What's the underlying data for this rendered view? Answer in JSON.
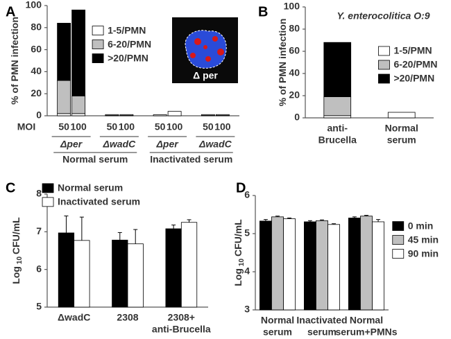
{
  "chart_data": [
    {
      "type": "bar",
      "stacked": true,
      "panel": "A",
      "ylabel": "% of PMN infection",
      "x_prefix": "MOI",
      "categories": [
        "50",
        "100",
        "50",
        "100",
        "50",
        "100",
        "50",
        "100"
      ],
      "groups": [
        "Δper",
        "ΔwadC",
        "Δper",
        "ΔwadC"
      ],
      "supergroups": [
        "Normal serum",
        "Inactivated serum"
      ],
      "inset_label": "Δ per",
      "series": [
        {
          "name": "1-5/PMN",
          "color": "#ffffff",
          "values": [
            2,
            2,
            0.3,
            0.3,
            1,
            4,
            0.3,
            0.3
          ]
        },
        {
          "name": "6-20/PMN",
          "color": "#bfbfbf",
          "values": [
            30,
            16,
            0.8,
            0.8,
            0,
            0,
            0.8,
            0.8
          ]
        },
        {
          "name": ">20/PMN",
          "color": "#000000",
          "values": [
            52,
            78,
            0,
            0,
            0,
            0,
            0,
            0
          ]
        }
      ],
      "ylim": [
        0,
        100
      ],
      "yticks": [
        0,
        20,
        40,
        60,
        80,
        100
      ],
      "grid": false,
      "legend": "center"
    },
    {
      "type": "bar",
      "stacked": true,
      "panel": "B",
      "title": "Y. enterocolitica O:9",
      "ylabel": "% of PMN infection",
      "categories": [
        [
          "anti-",
          "Brucella"
        ],
        [
          "Normal",
          "serum"
        ]
      ],
      "series": [
        {
          "name": "1-5/PMN",
          "color": "#ffffff",
          "values": [
            2,
            5
          ]
        },
        {
          "name": "6-20/PMN",
          "color": "#bfbfbf",
          "values": [
            17,
            0
          ]
        },
        {
          "name": ">20/PMN",
          "color": "#000000",
          "values": [
            49,
            0
          ]
        }
      ],
      "ylim": [
        0,
        100
      ],
      "yticks": [
        0,
        20,
        40,
        60,
        80,
        100
      ],
      "grid": false,
      "legend": "center right"
    },
    {
      "type": "bar",
      "stacked": false,
      "panel": "C",
      "ylabel": "Log",
      "ylabel_sub": "10",
      "ylabel_unit": "CFU/mL",
      "categories": [
        [
          "ΔwadC"
        ],
        [
          "2308"
        ],
        [
          "2308+",
          "anti-Brucella"
        ]
      ],
      "series": [
        {
          "name": "Normal serum",
          "color": "#000000",
          "values": [
            6.97,
            6.78,
            7.08
          ],
          "errors": [
            0.45,
            0.2,
            0.1
          ]
        },
        {
          "name": "Inactivated serum",
          "color": "#ffffff",
          "values": [
            6.77,
            6.68,
            7.25
          ],
          "errors": [
            0.62,
            0.38,
            0.07
          ]
        }
      ],
      "ylim": [
        5,
        8
      ],
      "yticks": [
        5,
        6,
        7,
        8
      ],
      "grid": false,
      "legend": "upper left"
    },
    {
      "type": "bar",
      "stacked": false,
      "panel": "D",
      "ylabel": "Log",
      "ylabel_sub": "10",
      "ylabel_unit": "CFU/mL",
      "categories": [
        [
          "Normal",
          "serum"
        ],
        [
          "Inactivated",
          "serum"
        ],
        [
          "Normal",
          "serum+PMNs"
        ]
      ],
      "series": [
        {
          "name": "0 min",
          "color": "#000000",
          "values": [
            5.33,
            5.31,
            5.41
          ],
          "errors": [
            0.04,
            0.03,
            0.03
          ]
        },
        {
          "name": "45 min",
          "color": "#bfbfbf",
          "values": [
            5.44,
            5.34,
            5.46
          ],
          "errors": [
            0.02,
            0.02,
            0.02
          ]
        },
        {
          "name": "90 min",
          "color": "#ffffff",
          "values": [
            5.39,
            5.24,
            5.31
          ],
          "errors": [
            0.02,
            0.02,
            0.06
          ]
        }
      ],
      "ylim": [
        3,
        6
      ],
      "yticks": [
        3,
        4,
        5,
        6
      ],
      "grid": false,
      "legend": "outside right"
    }
  ]
}
